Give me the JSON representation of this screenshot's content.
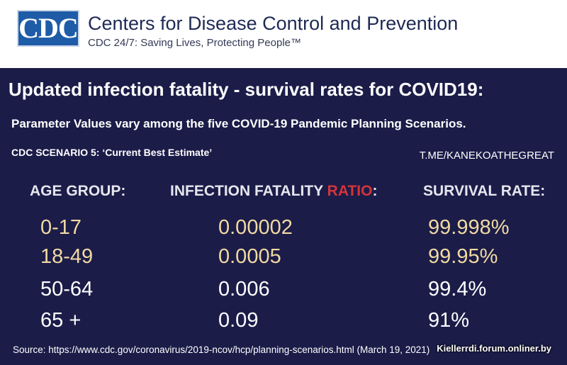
{
  "header": {
    "logo_text": "CDC",
    "org_name": "Centers for Disease Control and Prevention",
    "tagline": "CDC 24/7: Saving Lives, Protecting People™"
  },
  "title": "Updated infection fatality - survival rates for COVID19:",
  "subtitle": "Parameter Values vary among the five COVID-19 Pandemic Planning Scenarios.",
  "scenario": "CDC SCENARIO 5: ‘Current Best Estimate’",
  "credit": "T.ME/KANEKOATHEGREAT",
  "columns": {
    "age_group": "AGE GROUP:",
    "ifr_prefix": "INFECTION FATALITY ",
    "ifr_highlight": "RATIO",
    "ifr_suffix": ":",
    "survival": "SURVIVAL RATE:"
  },
  "rows": [
    {
      "age": "0-17",
      "ifr": "0.00002",
      "survival": "99.998%",
      "color": "#f1d9a2"
    },
    {
      "age": "18-49",
      "ifr": "0.0005",
      "survival": "99.95%",
      "color": "#f1d9a2"
    },
    {
      "age": "50-64",
      "ifr": "0.006",
      "survival": "99.4%",
      "color": "#ffffff"
    },
    {
      "age": "65 +",
      "ifr": "0.09",
      "survival": "91%",
      "color": "#ffffff"
    }
  ],
  "source": "Source: https://www.cdc.gov/coronavirus/2019-ncov/hcp/planning-scenarios.html (March 19, 2021)",
  "watermark": "Kiellerrdi.forum.onliner.by",
  "colors": {
    "background": "#1b1c48",
    "header_bg": "#ffffff",
    "logo_blue": "#1f5ca8",
    "highlight_red": "#d4343a",
    "cream": "#f1d9a2"
  }
}
